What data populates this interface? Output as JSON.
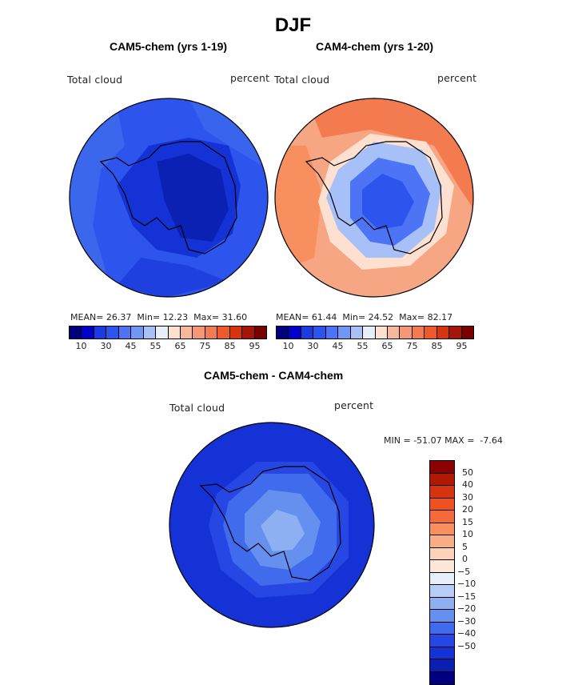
{
  "title": "DJF",
  "panels": [
    {
      "title": "CAM5-chem (yrs 1-19)",
      "left_label": "Total cloud",
      "right_label": "percent",
      "stats": {
        "mean_label": "MEAN=",
        "mean": "26.37",
        "min_label": "Min=",
        "min": "12.23",
        "max_label": "Max=",
        "max": "31.60"
      }
    },
    {
      "title": "CAM4-chem (yrs 1-20)",
      "left_label": "Total cloud",
      "right_label": "percent",
      "stats": {
        "mean_label": "MEAN=",
        "mean": "61.44",
        "min_label": "Min=",
        "min": "24.52",
        "max_label": "Max=",
        "max": "82.17"
      }
    }
  ],
  "abs_colorbar": {
    "colors": [
      "#00007f",
      "#0000c8",
      "#1a3be0",
      "#2d55ee",
      "#4c74f4",
      "#7097f7",
      "#a8c0f8",
      "#e6eefa",
      "#fde0d0",
      "#f7b89a",
      "#f59775",
      "#f47a50",
      "#f05a2a",
      "#d8340e",
      "#a6150a",
      "#7a0000"
    ],
    "labels": [
      "10",
      "30",
      "45",
      "55",
      "65",
      "75",
      "85",
      "95"
    ]
  },
  "diff_panel": {
    "title": "CAM5-chem - CAM4-chem",
    "left_label": "Total cloud",
    "right_label": "percent",
    "stats": {
      "min_label": "MIN =",
      "min": "-51.07",
      "max_label": "MAX =",
      "max": "-7.64"
    }
  },
  "diff_colorbar": {
    "colors": [
      "#8b0000",
      "#b01a05",
      "#d63410",
      "#f05020",
      "#f56a3a",
      "#f7905e",
      "#f9ad85",
      "#fcd2b8",
      "#fde7d8",
      "#e6f0fb",
      "#b8cdf5",
      "#8db0f2",
      "#6690ef",
      "#3f6bec",
      "#2647e4",
      "#1432d6",
      "#0a1fb0",
      "#000080"
    ],
    "labels": [
      "50",
      "40",
      "30",
      "20",
      "15",
      "10",
      "5",
      "0",
      "−5",
      "−10",
      "−15",
      "−20",
      "−30",
      "−40",
      "−50"
    ]
  }
}
